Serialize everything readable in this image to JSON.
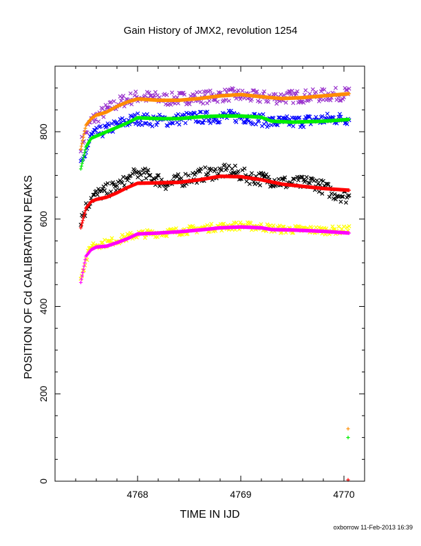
{
  "title": "Gain History of JMX2, revolution 1254",
  "footer": "oxborrow 11-Feb-2013 16:39",
  "chart_data": {
    "type": "scatter",
    "title": "Gain History of JMX2, revolution 1254",
    "xlabel": "TIME IN IJD",
    "ylabel": "POSITION OF Cd CALIBRATION PEAKS",
    "xlim": [
      4767.2,
      4770.2
    ],
    "ylim": [
      0,
      950
    ],
    "xticks": [
      4768,
      4769,
      4770
    ],
    "yticks": [
      0,
      200,
      400,
      600,
      800
    ],
    "grid": false,
    "legend": "none",
    "series": [
      {
        "color": "#9932cc",
        "marker": "x",
        "scatter": true,
        "spread": 15,
        "x": [
          4767.45,
          4767.55,
          4767.7,
          4767.85,
          4768.0,
          4768.15,
          4768.3,
          4768.5,
          4768.7,
          4768.9,
          4769.1,
          4769.3,
          4769.5,
          4769.7,
          4769.9,
          4770.05
        ],
        "y": [
          770,
          825,
          850,
          870,
          880,
          878,
          874,
          878,
          880,
          885,
          880,
          878,
          880,
          882,
          885,
          888
        ]
      },
      {
        "color": "#ff8c00",
        "marker": "+",
        "scatter": false,
        "x": [
          4767.45,
          4767.5,
          4767.55,
          4767.6,
          4767.7,
          4767.8,
          4767.9,
          4768.0,
          4768.2,
          4768.4,
          4768.6,
          4768.8,
          4769.0,
          4769.2,
          4769.4,
          4769.6,
          4769.8,
          4770.05
        ],
        "y": [
          760,
          815,
          830,
          838,
          845,
          858,
          868,
          875,
          872,
          872,
          876,
          882,
          885,
          880,
          876,
          878,
          882,
          887
        ]
      },
      {
        "color": "#0000ff",
        "marker": "x",
        "scatter": true,
        "spread": 14,
        "x": [
          4767.45,
          4767.55,
          4767.7,
          4767.85,
          4768.0,
          4768.15,
          4768.3,
          4768.5,
          4768.7,
          4768.9,
          4769.1,
          4769.3,
          4769.5,
          4769.7,
          4769.9,
          4770.05
        ],
        "y": [
          720,
          790,
          805,
          820,
          830,
          826,
          826,
          832,
          833,
          835,
          832,
          822,
          822,
          826,
          830,
          830
        ]
      },
      {
        "color": "#00ee00",
        "marker": "+",
        "scatter": false,
        "x": [
          4767.45,
          4767.5,
          4767.55,
          4767.6,
          4767.7,
          4767.8,
          4767.9,
          4768.0,
          4768.2,
          4768.4,
          4768.6,
          4768.8,
          4769.0,
          4769.2,
          4769.3,
          4769.5,
          4769.8,
          4770.05
        ],
        "y": [
          715,
          765,
          785,
          790,
          800,
          810,
          820,
          832,
          830,
          830,
          834,
          836,
          836,
          833,
          824,
          822,
          824,
          828
        ]
      },
      {
        "color": "#000000",
        "marker": "x",
        "scatter": true,
        "spread": 16,
        "x": [
          4767.45,
          4767.55,
          4767.7,
          4767.85,
          4768.0,
          4768.15,
          4768.3,
          4768.5,
          4768.7,
          4768.9,
          4769.1,
          4769.3,
          4769.5,
          4769.7,
          4769.9,
          4770.05
        ],
        "y": [
          600,
          650,
          665,
          680,
          705,
          695,
          680,
          695,
          705,
          710,
          695,
          690,
          680,
          685,
          660,
          650
        ]
      },
      {
        "color": "#ff0000",
        "marker": "+",
        "scatter": false,
        "x": [
          4767.45,
          4767.5,
          4767.55,
          4767.6,
          4767.7,
          4767.8,
          4767.9,
          4768.0,
          4768.2,
          4768.4,
          4768.6,
          4768.8,
          4769.0,
          4769.2,
          4769.4,
          4769.6,
          4769.8,
          4770.05
        ],
        "y": [
          580,
          625,
          640,
          645,
          650,
          660,
          672,
          682,
          683,
          684,
          690,
          698,
          697,
          690,
          680,
          675,
          670,
          666
        ]
      },
      {
        "color": "#ffff00",
        "marker": "x",
        "scatter": true,
        "spread": 9,
        "x": [
          4767.45,
          4767.55,
          4767.7,
          4767.85,
          4768.0,
          4768.2,
          4768.4,
          4768.6,
          4768.8,
          4769.0,
          4769.2,
          4769.4,
          4769.6,
          4769.8,
          4770.05
        ],
        "y": [
          470,
          540,
          545,
          555,
          565,
          568,
          572,
          578,
          582,
          585,
          582,
          576,
          576,
          574,
          575
        ]
      },
      {
        "color": "#ff00ff",
        "marker": "+",
        "scatter": false,
        "x": [
          4767.45,
          4767.5,
          4767.55,
          4767.6,
          4767.7,
          4767.8,
          4767.9,
          4768.0,
          4768.2,
          4768.4,
          4768.6,
          4768.8,
          4769.0,
          4769.2,
          4769.3,
          4769.5,
          4769.8,
          4770.05
        ],
        "y": [
          455,
          515,
          530,
          536,
          538,
          546,
          555,
          566,
          568,
          571,
          575,
          580,
          582,
          580,
          576,
          575,
          572,
          568
        ]
      }
    ],
    "extra_points": [
      {
        "x": 4770.04,
        "y": 120,
        "color": "#ff8c00",
        "marker": "+"
      },
      {
        "x": 4770.04,
        "y": 100,
        "color": "#00ee00",
        "marker": "+"
      },
      {
        "x": 4770.04,
        "y": 3,
        "color": "#ff0000",
        "marker": "+"
      }
    ]
  }
}
